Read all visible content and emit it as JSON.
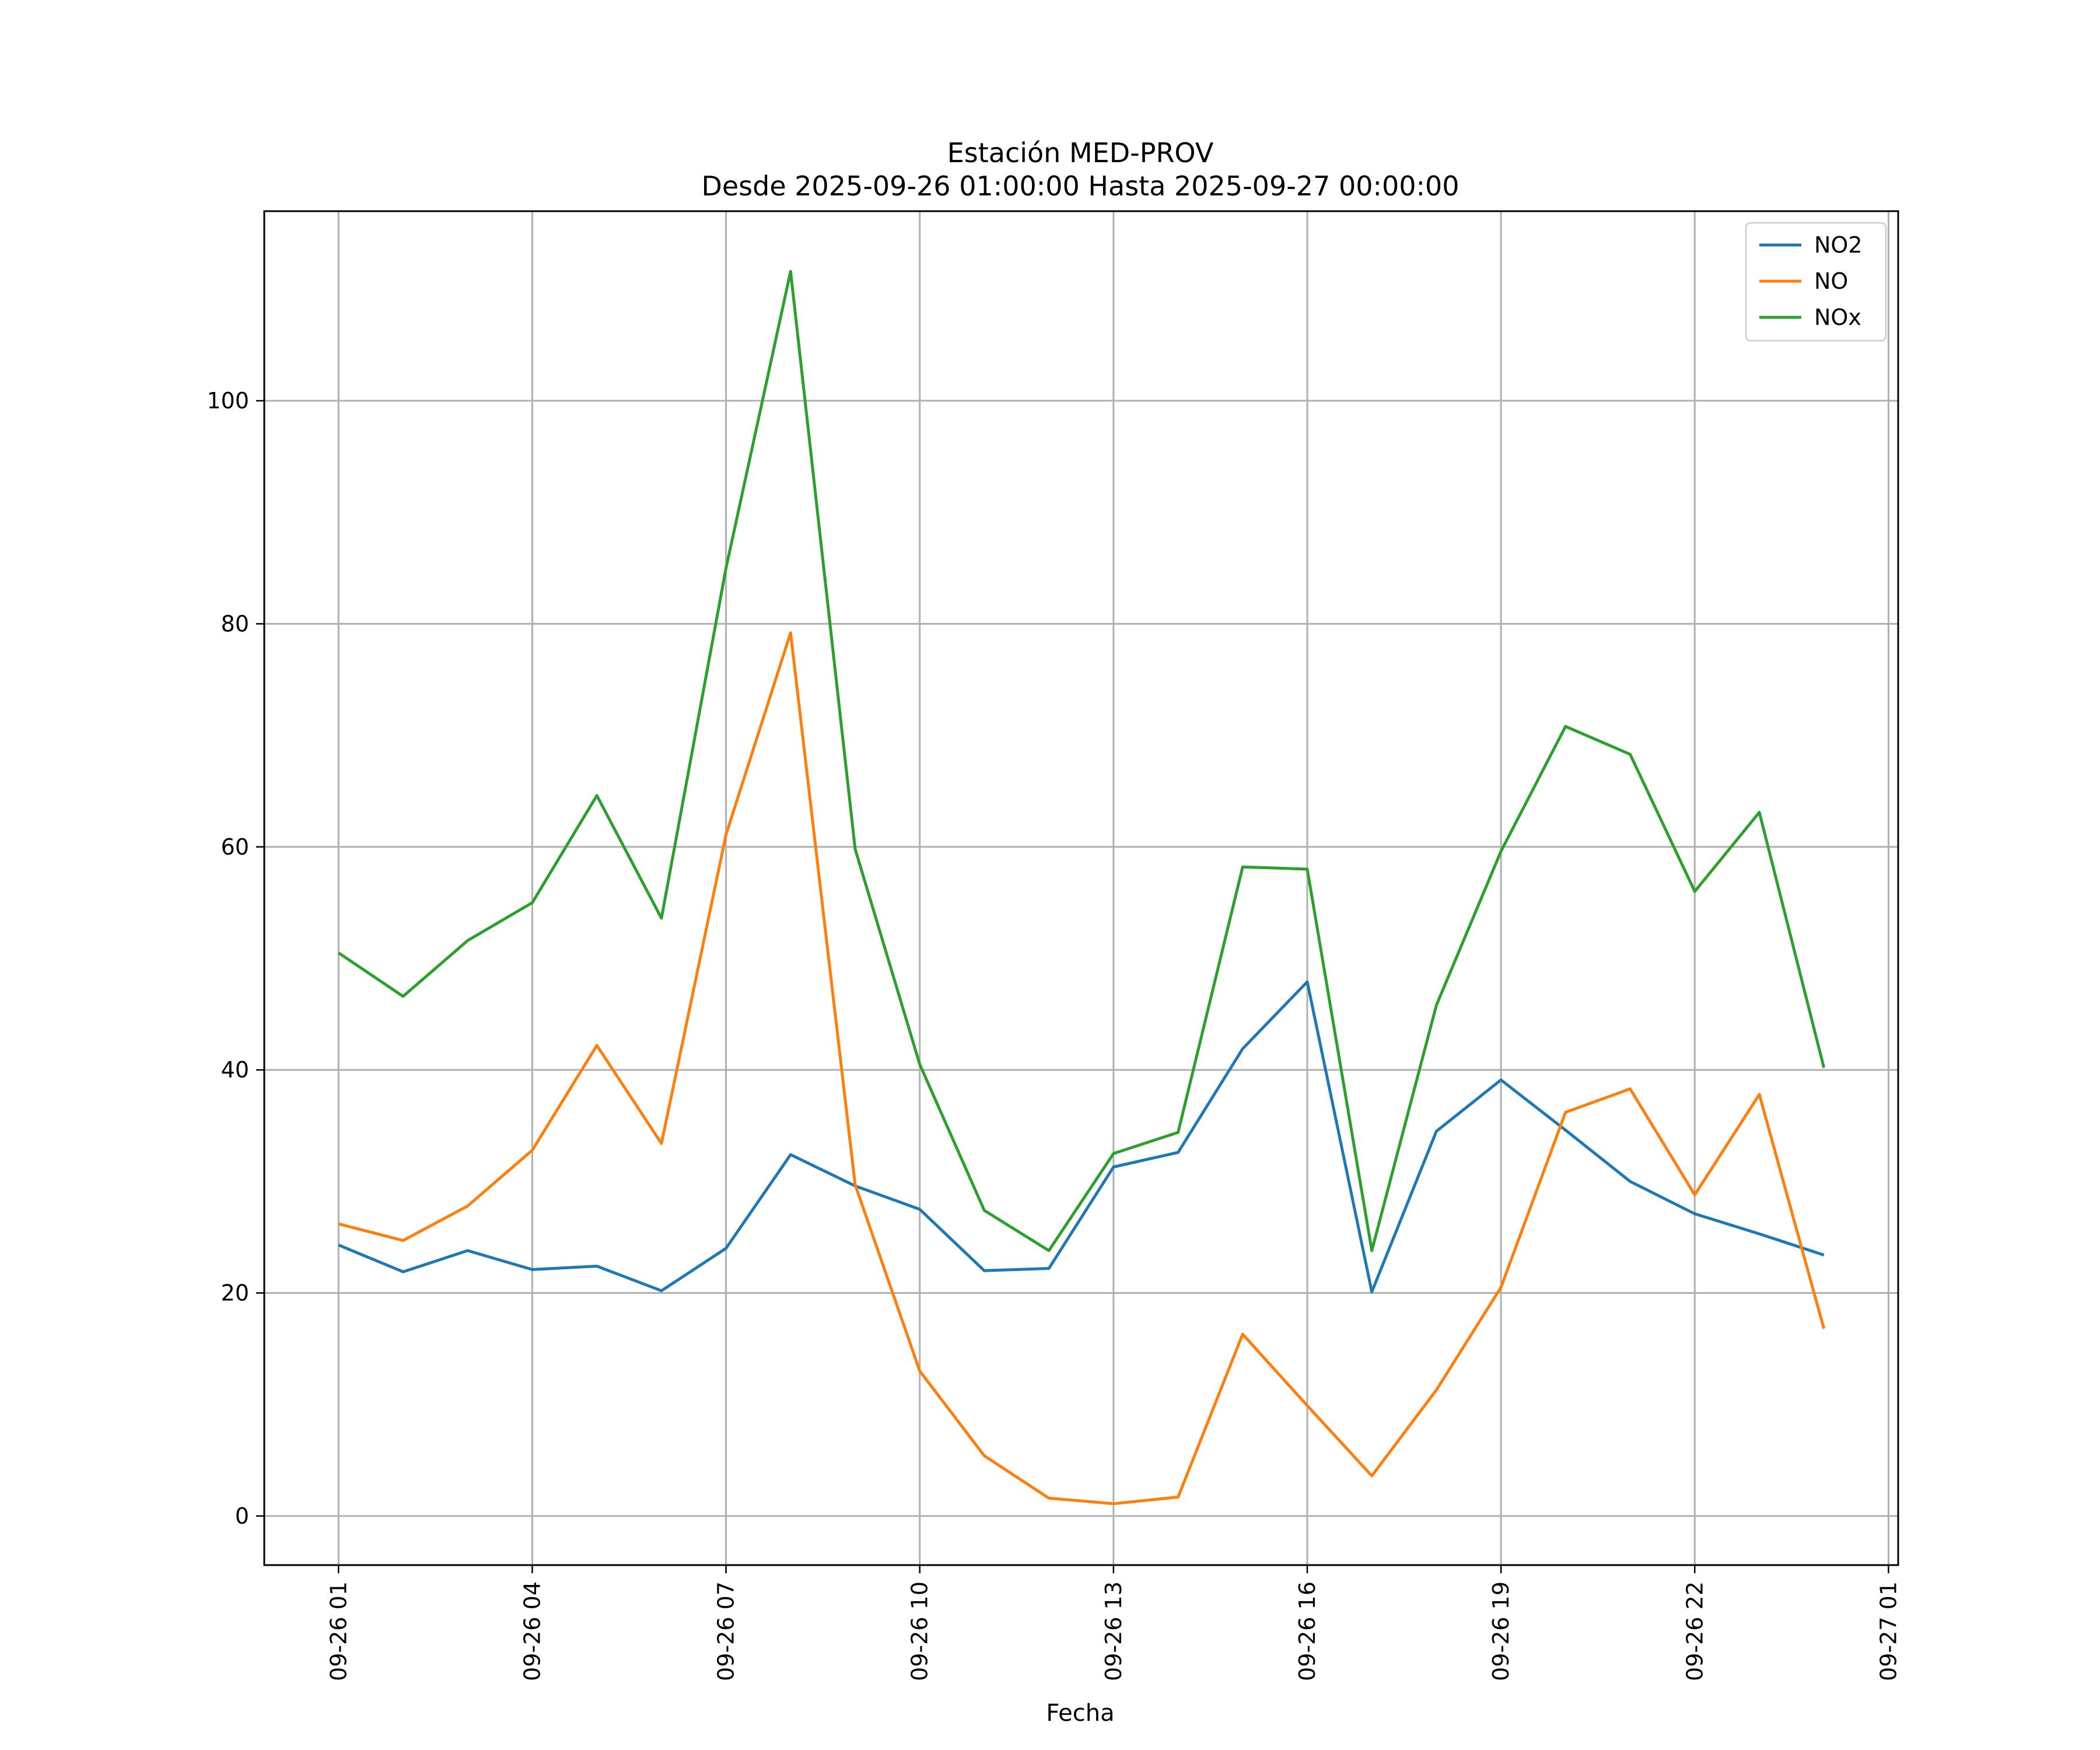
{
  "chart_data": {
    "type": "line",
    "title": "Estación MED-PROV",
    "subtitle": "Desde 2025-09-26 01:00:00 Hasta 2025-09-27 00:00:00",
    "xlabel": "Fecha",
    "ylabel": "",
    "x": [
      "09-26 01",
      "09-26 02",
      "09-26 03",
      "09-26 04",
      "09-26 05",
      "09-26 06",
      "09-26 07",
      "09-26 08",
      "09-26 09",
      "09-26 10",
      "09-26 11",
      "09-26 12",
      "09-26 13",
      "09-26 14",
      "09-26 15",
      "09-26 16",
      "09-26 17",
      "09-26 18",
      "09-26 19",
      "09-26 20",
      "09-26 21",
      "09-26 22",
      "09-26 23",
      "09-27 00"
    ],
    "x_hours": [
      1,
      2,
      3,
      4,
      5,
      6,
      7,
      8,
      9,
      10,
      11,
      12,
      13,
      14,
      15,
      16,
      17,
      18,
      19,
      20,
      21,
      22,
      23,
      24
    ],
    "xlim_hours": [
      -0.15,
      25.15
    ],
    "x_ticks_hours": [
      1,
      4,
      7,
      10,
      13,
      16,
      19,
      22,
      25
    ],
    "x_tick_labels": [
      "09-26 01",
      "09-26 04",
      "09-26 07",
      "09-26 10",
      "09-26 13",
      "09-26 16",
      "09-26 19",
      "09-26 22",
      "09-27 01"
    ],
    "ylim": [
      -4.4,
      117
    ],
    "y_ticks": [
      0,
      20,
      40,
      60,
      80,
      100
    ],
    "y_tick_labels": [
      "0",
      "20",
      "40",
      "60",
      "80",
      "100"
    ],
    "grid": true,
    "legend_position": "top-right",
    "series": [
      {
        "name": "NO2",
        "color": "#1f77b4",
        "values": [
          24.3,
          21.9,
          23.8,
          22.1,
          22.4,
          20.2,
          24.0,
          32.4,
          29.6,
          27.5,
          22.0,
          22.2,
          31.3,
          32.6,
          41.9,
          47.9,
          20.1,
          34.5,
          39.1,
          34.6,
          30.0,
          27.1,
          25.3,
          23.4
        ]
      },
      {
        "name": "NO",
        "color": "#ff7f0e",
        "values": [
          26.2,
          24.7,
          27.8,
          32.8,
          42.2,
          33.4,
          61.1,
          79.2,
          29.7,
          13.0,
          5.4,
          1.6,
          1.1,
          1.7,
          16.3,
          9.9,
          3.6,
          11.3,
          20.5,
          36.2,
          38.3,
          28.8,
          37.8,
          16.8
        ]
      },
      {
        "name": "NOx",
        "color": "#2ca02c",
        "values": [
          50.5,
          46.6,
          51.6,
          55.0,
          64.6,
          53.6,
          85.0,
          111.6,
          59.8,
          40.5,
          27.4,
          23.8,
          32.5,
          34.4,
          58.2,
          58.0,
          23.8,
          45.8,
          59.6,
          70.8,
          68.3,
          56.0,
          63.1,
          40.2
        ]
      }
    ]
  }
}
